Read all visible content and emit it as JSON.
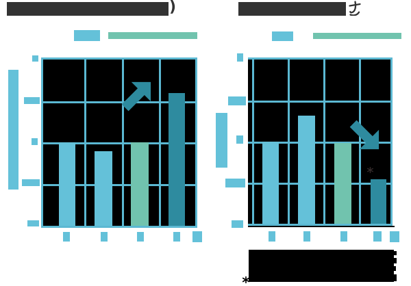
{
  "page": {
    "background": "#ffffff"
  },
  "colors": {
    "bar_light_blue": "#64c1d9",
    "bar_teal_green": "#71c3ae",
    "bar_dark_teal": "#2e8b9f",
    "grid_blue": "#5bb8d2",
    "placeholder_blue": "#64c1d9",
    "redacted_title_gray": "#333333",
    "redacted_body_black": "#000000"
  },
  "left_chart": {
    "title_suffix": ")",
    "trend": "up"
  },
  "right_chart": {
    "title_suffix": "さ",
    "annotation_mark": "＊",
    "trend": "down"
  },
  "caption": {
    "reference_mark": "※"
  },
  "chart_data": [
    {
      "type": "bar",
      "title": "[redacted] )",
      "categories": [
        "",
        "",
        "",
        ""
      ],
      "values": [
        50,
        45,
        50,
        80
      ],
      "bar_colors": [
        "#64c1d9",
        "#64c1d9",
        "#71c3ae",
        "#2e8b9f"
      ],
      "ylim": [
        0,
        100
      ],
      "y_gridlines": [
        25,
        50,
        75
      ],
      "legend": [
        "",
        ""
      ],
      "legend_position": "top",
      "grid": true,
      "annotations": [
        "upward trend arrow over bars 3-4"
      ]
    },
    {
      "type": "bar",
      "title": "[redacted] さ",
      "categories": [
        "",
        "",
        "",
        ""
      ],
      "values": [
        50,
        66,
        49,
        27
      ],
      "bar_colors": [
        "#64c1d9",
        "#64c1d9",
        "#71c3ae",
        "#2e8b9f"
      ],
      "ylim": [
        0,
        100
      ],
      "y_gridlines": [
        25,
        50,
        75
      ],
      "legend": [
        "",
        ""
      ],
      "legend_position": "top",
      "grid": true,
      "annotations": [
        "downward trend arrow over bar 4",
        "＊ mark above bar 4"
      ]
    }
  ]
}
